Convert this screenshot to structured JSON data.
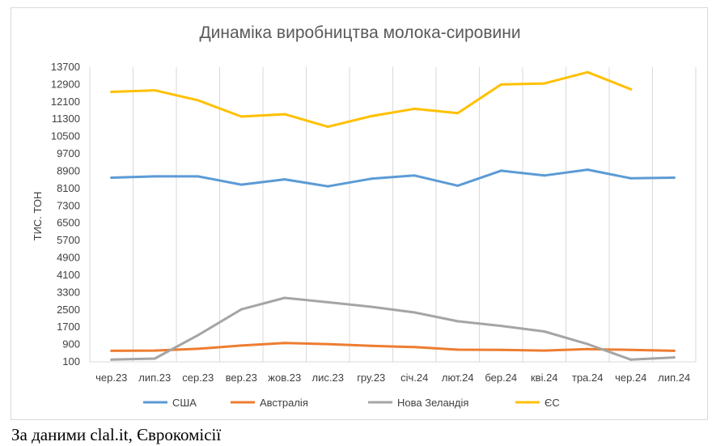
{
  "chart_data": {
    "type": "line",
    "title": "Динаміка виробництва молока-сировини",
    "ylabel": "ТИС. ТОН",
    "xlabel": "",
    "ylim": [
      100,
      13700
    ],
    "yticks": [
      100,
      900,
      1700,
      2500,
      3300,
      4100,
      4900,
      5700,
      6500,
      7300,
      8100,
      8900,
      9700,
      10500,
      11300,
      12100,
      12900,
      13700
    ],
    "categories": [
      "чер.23",
      "лип.23",
      "сер.23",
      "вер.23",
      "жов.23",
      "лис.23",
      "гру.23",
      "січ.24",
      "лют.24",
      "бер.24",
      "кві.24",
      "тра.24",
      "чер.24",
      "лип.24"
    ],
    "grid": "vertical",
    "legend_position": "bottom",
    "series": [
      {
        "name": "США",
        "color": "#5b9bd5",
        "values": [
          8600,
          8660,
          8660,
          8280,
          8520,
          8200,
          8550,
          8700,
          8230,
          8920,
          8700,
          8970,
          8570,
          8600
        ]
      },
      {
        "name": "Австралія",
        "color": "#ed7d31",
        "values": [
          610,
          620,
          700,
          850,
          970,
          920,
          840,
          780,
          660,
          650,
          620,
          690,
          650,
          610
        ]
      },
      {
        "name": "Нова Зеландія",
        "color": "#a5a5a5",
        "values": [
          200,
          250,
          1330,
          2520,
          3050,
          2850,
          2640,
          2380,
          1970,
          1760,
          1500,
          920,
          200,
          300
        ]
      },
      {
        "name": "ЄС",
        "color": "#ffc000",
        "values": [
          12560,
          12630,
          12170,
          11420,
          11530,
          10950,
          11440,
          11780,
          11580,
          12900,
          12950,
          13470,
          12680,
          null
        ]
      }
    ]
  },
  "footer": {
    "source_note": "За даними clal.it, Єврокомісії"
  }
}
